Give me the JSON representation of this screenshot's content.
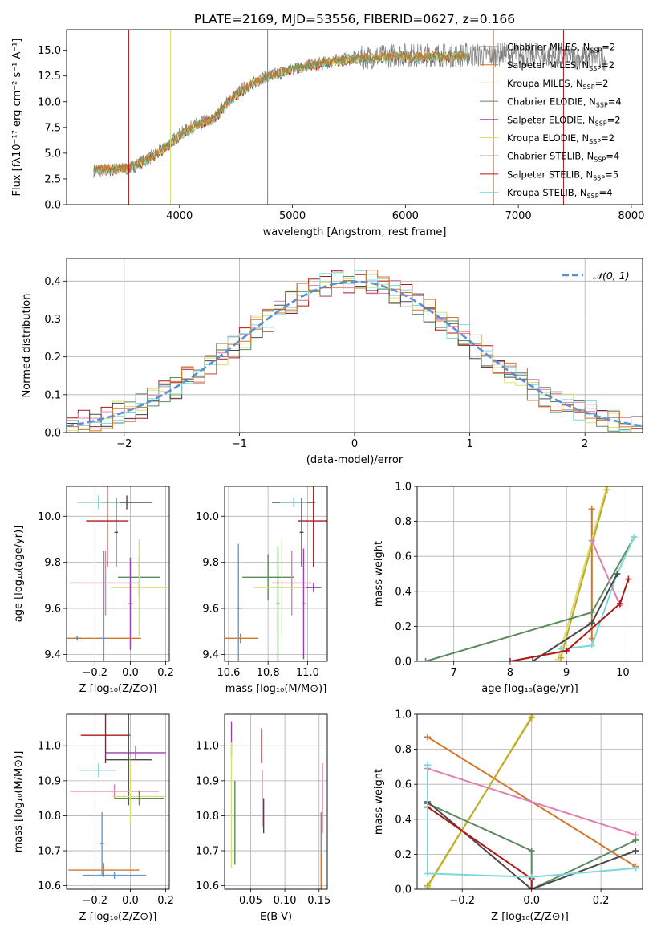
{
  "colors": {
    "grey": "#808080",
    "orange": "#d2762a",
    "olive": "#c2a82a",
    "green": "#5a8a5e",
    "purple": "#9b3fb5",
    "yellow": "#d8e070",
    "dark": "#4a4a4a",
    "red": "#b01818",
    "cyan": "#7fd8d8",
    "pink": "#e07fb0",
    "blue": "#6699cc",
    "gauss": "#5b8fd6"
  },
  "chart_data": [
    {
      "id": "spectrum",
      "type": "line",
      "title": "PLATE=2169, MJD=53556, FIBERID=0627, z=0.166",
      "xlabel": "wavelength [Angstrom, rest frame]",
      "ylabel": "Flux [fλ10⁻¹⁷ erg cm⁻² s⁻¹ A⁻¹]",
      "xlim": [
        3000,
        8100
      ],
      "ylim": [
        0,
        17
      ],
      "xticks": [
        4000,
        5000,
        6000,
        7000,
        8000
      ],
      "yticks": [
        0.0,
        2.5,
        5.0,
        7.5,
        10.0,
        12.5,
        15.0
      ],
      "ytick_labels": [
        "0.0",
        "2.5",
        "5.0",
        "7.5",
        "10.0",
        "12.5",
        "15.0"
      ],
      "grid": false,
      "legend_position": "right",
      "legend": [
        {
          "label": "Chabrier MILES, N",
          "sub": "SSP",
          "suffix": "=2",
          "color": "#808080"
        },
        {
          "label": "Salpeter MILES, N",
          "sub": "SSP",
          "suffix": "=2",
          "color": "#d2762a"
        },
        {
          "label": "Kroupa MILES, N",
          "sub": "SSP",
          "suffix": "=2",
          "color": "#c2a82a"
        },
        {
          "label": "Chabrier ELODIE, N",
          "sub": "SSP",
          "suffix": "=4",
          "color": "#5a8a5e"
        },
        {
          "label": "Salpeter ELODIE, N",
          "sub": "SSP",
          "suffix": "=2",
          "color": "#9b3fb5"
        },
        {
          "label": "Kroupa ELODIE, N",
          "sub": "SSP",
          "suffix": "=2",
          "color": "#d8e070"
        },
        {
          "label": "Chabrier STELIB, N",
          "sub": "SSP",
          "suffix": "=4",
          "color": "#4a4a4a"
        },
        {
          "label": "Salpeter STELIB, N",
          "sub": "SSP",
          "suffix": "=5",
          "color": "#b01818"
        },
        {
          "label": "Kroupa STELIB, N",
          "sub": "SSP",
          "suffix": "=4",
          "color": "#7fd8d8"
        }
      ],
      "series_data": {
        "observed_x": [
          3250,
          3400,
          3550,
          3700,
          3850,
          4000,
          4150,
          4300,
          4450,
          4600,
          4750,
          4900,
          5050,
          5200,
          5350,
          5500,
          5650,
          5800,
          5950,
          6100,
          6250,
          6400,
          6550,
          6700,
          6850,
          7000,
          7150,
          7300,
          7450,
          7600,
          7750
        ],
        "observed_y": [
          3.3,
          3.4,
          3.5,
          4.3,
          5.3,
          6.8,
          7.8,
          8.3,
          10.3,
          11.5,
          12.4,
          12.8,
          13.3,
          13.6,
          13.9,
          14.2,
          14.3,
          14.4,
          14.6,
          14.5,
          14.6,
          14.5,
          14.6,
          14.5,
          14.6,
          14.6,
          14.5,
          14.4,
          14.3,
          14.3,
          14.2
        ],
        "model_x": [
          3250,
          3400,
          3550,
          3700,
          3850,
          4000,
          4150,
          4300,
          4450,
          4600,
          4750,
          4900,
          5050,
          5200,
          5350,
          5500,
          5650,
          5800,
          5950,
          6100,
          6250,
          6400,
          6550
        ],
        "model_y": [
          3.2,
          3.3,
          3.5,
          4.2,
          5.2,
          6.6,
          7.6,
          8.2,
          10.1,
          11.3,
          12.2,
          12.7,
          13.2,
          13.5,
          13.8,
          14.0,
          14.1,
          14.2,
          14.3,
          14.2,
          14.3,
          14.2,
          14.3
        ],
        "dips_x": [
          3550,
          3920,
          4780,
          6780,
          7400
        ]
      }
    },
    {
      "id": "residuals",
      "type": "line",
      "xlabel": "(data-model)/error",
      "ylabel": "Normed distribution",
      "xlim": [
        -2.5,
        2.5
      ],
      "ylim": [
        0,
        0.46
      ],
      "xticks": [
        -2,
        -1,
        0,
        1,
        2
      ],
      "xtick_labels": [
        "−2",
        "−1",
        "0",
        "1",
        "2"
      ],
      "yticks": [
        0.0,
        0.1,
        0.2,
        0.3,
        0.4
      ],
      "ytick_labels": [
        "0.0",
        "0.1",
        "0.2",
        "0.3",
        "0.4"
      ],
      "grid": true,
      "legend_position": "top-right",
      "legend": [
        {
          "label": "𝒩(0, 1)",
          "color": "#5b8fd6"
        }
      ],
      "hist_bin_width": 0.1
    },
    {
      "id": "age_vs_z",
      "type": "scatter",
      "xlabel": "Z [log₁₀(Z/Z⊙)]",
      "ylabel": "age  [log₁₀(age/yr)]",
      "xlim": [
        -0.36,
        0.22
      ],
      "ylim": [
        9.37,
        10.13
      ],
      "xticks": [
        -0.2,
        0.0,
        0.2
      ],
      "xtick_labels": [
        "−0.2",
        "0.0",
        "0.2"
      ],
      "yticks": [
        9.4,
        9.6,
        9.8,
        10.0
      ],
      "ytick_labels": [
        "9.4",
        "9.6",
        "9.8",
        "10.0"
      ],
      "grid": true,
      "points": [
        {
          "x": -0.02,
          "y": 10.06,
          "dx": 0.14,
          "dy": 0.03,
          "color": "#4a4a4a"
        },
        {
          "x": -0.18,
          "y": 10.06,
          "dx": 0.12,
          "dy": 0.03,
          "color": "#7fd8d8"
        },
        {
          "x": -0.13,
          "y": 9.98,
          "dx": 0.12,
          "dy": 0.2,
          "color": "#b01818"
        },
        {
          "x": -0.08,
          "y": 9.93,
          "dx": 0.01,
          "dy": 0.15,
          "color": "#4a4a4a"
        },
        {
          "x": 0.05,
          "y": 9.735,
          "dx": 0.12,
          "dy": 0.09,
          "color": "#5a8a5e"
        },
        {
          "x": -0.14,
          "y": 9.71,
          "dx": 0.2,
          "dy": 0.14,
          "color": "#e07fb0"
        },
        {
          "x": 0.05,
          "y": 9.69,
          "dx": 0.16,
          "dy": 0.21,
          "color": "#d8e070"
        },
        {
          "x": 0.0,
          "y": 9.62,
          "dx": 0.015,
          "dy": 0.2,
          "color": "#9b3fb5"
        },
        {
          "x": -0.15,
          "y": 9.47,
          "dx": 0.21,
          "dy": 0.38,
          "color": "#d2762a"
        },
        {
          "x": -0.15,
          "y": 9.47,
          "dx": 0.02,
          "dy": 0.38,
          "color": "#6699cc"
        },
        {
          "x": -0.3,
          "y": 9.47,
          "dx": 0.02,
          "dy": 0.01,
          "color": "#808080"
        }
      ]
    },
    {
      "id": "age_vs_mass",
      "type": "scatter",
      "xlabel": "mass [log₁₀(M/M⊙)]",
      "ylabel": "",
      "xlim": [
        10.58,
        11.1
      ],
      "ylim": [
        9.37,
        10.13
      ],
      "xticks": [
        10.6,
        10.8,
        11.0
      ],
      "xtick_labels": [
        "10.6",
        "10.8",
        "11.0"
      ],
      "yticks": [
        9.4,
        9.6,
        9.8,
        10.0
      ],
      "ytick_labels": [
        "9.4",
        "9.6",
        "9.8",
        "10.0"
      ],
      "grid": true,
      "points": [
        {
          "x": 10.93,
          "y": 10.06,
          "dx": 0.11,
          "dy": 0.02,
          "color": "#4a4a4a"
        },
        {
          "x": 10.93,
          "y": 10.06,
          "dx": 0.07,
          "dy": 0.02,
          "color": "#7fd8d8"
        },
        {
          "x": 11.03,
          "y": 9.98,
          "dx": 0.08,
          "dy": 0.2,
          "color": "#b01818"
        },
        {
          "x": 10.97,
          "y": 9.93,
          "dx": 0.01,
          "dy": 0.15,
          "color": "#4a4a4a"
        },
        {
          "x": 10.8,
          "y": 9.735,
          "dx": 0.13,
          "dy": 0.1,
          "color": "#5a8a5e"
        },
        {
          "x": 10.92,
          "y": 9.71,
          "dx": 0.1,
          "dy": 0.14,
          "color": "#e07fb0"
        },
        {
          "x": 10.87,
          "y": 9.69,
          "dx": 0.14,
          "dy": 0.21,
          "color": "#d8e070"
        },
        {
          "x": 11.03,
          "y": 9.69,
          "dx": 0.04,
          "dy": 0.02,
          "color": "#9b3fb5"
        },
        {
          "x": 10.66,
          "y": 9.47,
          "dx": 0.09,
          "dy": 0.02,
          "color": "#d2762a"
        },
        {
          "x": 10.65,
          "y": 9.6,
          "dx": 0.01,
          "dy": 0.28,
          "color": "#6699cc"
        },
        {
          "x": 10.85,
          "y": 9.62,
          "dx": 0.01,
          "dy": 0.25,
          "color": "#5a8a5e"
        },
        {
          "x": 10.98,
          "y": 9.62,
          "dx": 0.01,
          "dy": 0.24,
          "color": "#9b3fb5"
        }
      ]
    },
    {
      "id": "weight_vs_age",
      "type": "line",
      "xlabel": "age  [log₁₀(age/yr)]",
      "ylabel": "mass weight",
      "xlim": [
        6.35,
        10.35
      ],
      "ylim": [
        0,
        1
      ],
      "xticks": [
        7,
        8,
        9,
        10
      ],
      "xtick_labels": [
        "7",
        "8",
        "9",
        "10"
      ],
      "yticks": [
        0.0,
        0.2,
        0.4,
        0.6,
        0.8,
        1.0
      ],
      "ytick_labels": [
        "0.0",
        "0.2",
        "0.4",
        "0.6",
        "0.8",
        "1.0"
      ],
      "grid": true,
      "series": [
        {
          "color": "#d2762a",
          "x": [
            9.45,
            9.45
          ],
          "y": [
            0.13,
            0.87
          ]
        },
        {
          "color": "#d8e070",
          "x": [
            8.85,
            9.7
          ],
          "y": [
            0.01,
            0.98
          ]
        },
        {
          "color": "#c2a82a",
          "x": [
            8.9,
            9.72
          ],
          "y": [
            0.02,
            0.98
          ]
        },
        {
          "color": "#5a8a5e",
          "x": [
            6.5,
            9.45,
            10.2
          ],
          "y": [
            0.0,
            0.28,
            0.71
          ]
        },
        {
          "color": "#7fd8d8",
          "x": [
            8.9,
            9.45,
            9.9,
            10.2
          ],
          "y": [
            0.07,
            0.09,
            0.5,
            0.71
          ]
        },
        {
          "color": "#e07fb0",
          "x": [
            9.45,
            9.95
          ],
          "y": [
            0.69,
            0.32
          ]
        },
        {
          "color": "#4a4a4a",
          "x": [
            8.4,
            9.45,
            9.9
          ],
          "y": [
            0.0,
            0.22,
            0.5
          ]
        },
        {
          "color": "#b01818",
          "x": [
            8.0,
            9.0,
            9.95,
            10.1
          ],
          "y": [
            0.0,
            0.06,
            0.33,
            0.47
          ]
        }
      ]
    },
    {
      "id": "mass_vs_z",
      "type": "scatter",
      "xlabel": "Z [log₁₀(Z/Z⊙)]",
      "ylabel": "mass [log₁₀(M/M⊙)]",
      "xlim": [
        -0.36,
        0.22
      ],
      "ylim": [
        10.59,
        11.09
      ],
      "xticks": [
        -0.2,
        0.0,
        0.2
      ],
      "xtick_labels": [
        "−0.2",
        "0.0",
        "0.2"
      ],
      "yticks": [
        10.6,
        10.7,
        10.8,
        10.9,
        11.0
      ],
      "ytick_labels": [
        "10.6",
        "10.7",
        "10.8",
        "10.9",
        "11.0"
      ],
      "grid": true,
      "points": [
        {
          "x": -0.14,
          "y": 11.03,
          "dx": 0.14,
          "dy": 0.08,
          "color": "#b01818"
        },
        {
          "x": 0.03,
          "y": 10.98,
          "dx": 0.17,
          "dy": 0.02,
          "color": "#9b3fb5"
        },
        {
          "x": -0.01,
          "y": 10.96,
          "dx": 0.13,
          "dy": 0.13,
          "color": "#4a4a4a"
        },
        {
          "x": -0.18,
          "y": 10.93,
          "dx": 0.1,
          "dy": 0.02,
          "color": "#7fd8d8"
        },
        {
          "x": -0.09,
          "y": 10.87,
          "dx": 0.25,
          "dy": 0.02,
          "color": "#e07fb0"
        },
        {
          "x": 0.05,
          "y": 10.855,
          "dx": 0.15,
          "dy": 0.02,
          "color": "#d8e070"
        },
        {
          "x": 0.05,
          "y": 10.85,
          "dx": 0.14,
          "dy": 0.02,
          "color": "#5a8a5e"
        },
        {
          "x": 0.0,
          "y": 10.87,
          "dx": 0.01,
          "dy": 0.09,
          "color": "#d8e070"
        },
        {
          "x": -0.15,
          "y": 10.645,
          "dx": 0.2,
          "dy": 0.02,
          "color": "#d2762a"
        },
        {
          "x": -0.09,
          "y": 10.63,
          "dx": 0.18,
          "dy": 0.01,
          "color": "#6699cc"
        },
        {
          "x": -0.16,
          "y": 10.72,
          "dx": 0.01,
          "dy": 0.09,
          "color": "#6699cc"
        }
      ]
    },
    {
      "id": "mass_vs_ebv",
      "type": "scatter",
      "xlabel": "E(B-V)",
      "ylabel": "",
      "xlim": [
        0.012,
        0.162
      ],
      "ylim": [
        10.59,
        11.09
      ],
      "xticks": [
        0.05,
        0.1,
        0.15
      ],
      "xtick_labels": [
        "0.05",
        "0.10",
        "0.15"
      ],
      "yticks": [
        10.6,
        10.7,
        10.8,
        10.9,
        11.0
      ],
      "ytick_labels": [
        "10.6",
        "10.7",
        "10.8",
        "10.9",
        "11.0"
      ],
      "grid": true,
      "points": [
        {
          "x": 0.022,
          "y": 11.02,
          "dx": 0.0,
          "dy": 0.05,
          "color": "#9b3fb5"
        },
        {
          "x": 0.022,
          "y": 10.83,
          "dx": 0.0,
          "dy": 0.18,
          "color": "#d8e070"
        },
        {
          "x": 0.027,
          "y": 10.78,
          "dx": 0.0,
          "dy": 0.12,
          "color": "#5a8a5e"
        },
        {
          "x": 0.066,
          "y": 11.0,
          "dx": 0.0,
          "dy": 0.05,
          "color": "#b01818"
        },
        {
          "x": 0.067,
          "y": 10.85,
          "dx": 0.0,
          "dy": 0.08,
          "color": "#e07fb0"
        },
        {
          "x": 0.069,
          "y": 10.8,
          "dx": 0.0,
          "dy": 0.05,
          "color": "#4a4a4a"
        },
        {
          "x": 0.153,
          "y": 10.7,
          "dx": 0.0,
          "dy": 0.11,
          "color": "#d2762a"
        },
        {
          "x": 0.155,
          "y": 10.85,
          "dx": 0.0,
          "dy": 0.1,
          "color": "#e07fb0"
        },
        {
          "x": 0.154,
          "y": 10.75,
          "dx": 0.0,
          "dy": 0.06,
          "color": "#6699cc"
        }
      ]
    },
    {
      "id": "weight_vs_z",
      "type": "line",
      "xlabel": "Z [log₁₀(Z/Z⊙)]",
      "ylabel": "mass weight",
      "xlim": [
        -0.33,
        0.32
      ],
      "ylim": [
        0,
        1
      ],
      "xticks": [
        -0.2,
        0.0,
        0.2
      ],
      "xtick_labels": [
        "−0.2",
        "0.0",
        "0.2"
      ],
      "yticks": [
        0.0,
        0.2,
        0.4,
        0.6,
        0.8,
        1.0
      ],
      "ytick_labels": [
        "0.0",
        "0.2",
        "0.4",
        "0.6",
        "0.8",
        "1.0"
      ],
      "grid": true,
      "series": [
        {
          "color": "#d2762a",
          "x": [
            -0.3,
            0.3
          ],
          "y": [
            0.87,
            0.13
          ]
        },
        {
          "color": "#d8e070",
          "x": [
            -0.3,
            0.0
          ],
          "y": [
            0.01,
            0.99
          ]
        },
        {
          "color": "#c2a82a",
          "x": [
            -0.3,
            0.0
          ],
          "y": [
            0.02,
            0.98
          ]
        },
        {
          "color": "#e07fb0",
          "x": [
            -0.3,
            0.3
          ],
          "y": [
            0.69,
            0.31
          ]
        },
        {
          "color": "#5a8a5e",
          "x": [
            -0.3,
            0.0,
            0.0,
            0.3
          ],
          "y": [
            0.49,
            0.22,
            0.0,
            0.28
          ]
        },
        {
          "color": "#4a4a4a",
          "x": [
            -0.3,
            0.0,
            0.3
          ],
          "y": [
            0.5,
            0.0,
            0.22
          ]
        },
        {
          "color": "#b01818",
          "x": [
            -0.3,
            0.0,
            0.0
          ],
          "y": [
            0.47,
            0.06,
            0.0
          ]
        },
        {
          "color": "#7fd8d8",
          "x": [
            -0.3,
            -0.3,
            0.0,
            0.3
          ],
          "y": [
            0.71,
            0.09,
            0.07,
            0.12
          ]
        }
      ]
    }
  ]
}
